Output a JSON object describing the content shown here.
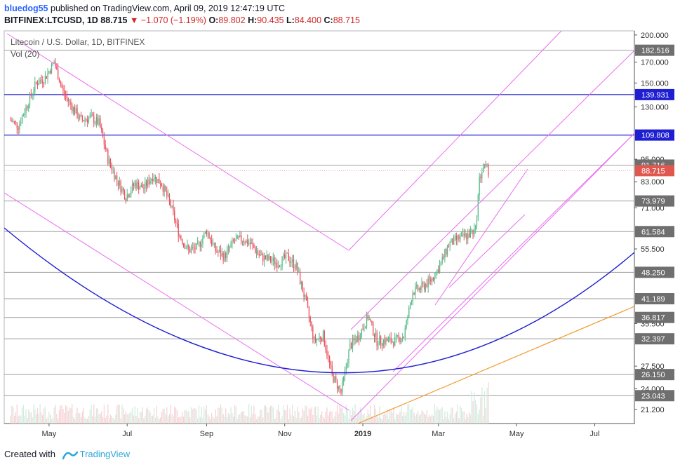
{
  "header": {
    "author": "bluedog55",
    "published_text": "published on TradingView.com, April 09, 2019 12:47:19 UTC",
    "symbol": "BITFINEX:LTCUSD, 1D",
    "last": "88.715",
    "change": "▼ −1.070 (−1.19%)",
    "o_label": "O:",
    "o": "89.802",
    "h_label": "H:",
    "h": "90.435",
    "l_label": "L:",
    "l": "84.400",
    "c_label": "C:",
    "c": "88.715"
  },
  "footer": {
    "created_with": "Created with",
    "brand": "TradingView"
  },
  "colors": {
    "up": "#53b987",
    "down": "#eb4d5c",
    "vol_up": "#d5ece0",
    "vol_down": "#f6d3d6",
    "blue_line": "#1e1ed2",
    "magenta_line": "#ea6ef0",
    "orange_line": "#f29a2e",
    "gray_line": "#9e9e9e",
    "axis_label_bg": "#6f6f6f",
    "price_label_bg": "#e0574f",
    "blue_label_bg": "#1e1ed2"
  },
  "chart_data": {
    "type": "candlestick",
    "title": "Litecoin / U.S. Dollar, 1D, BITFINEX",
    "indicator": "Vol (20)",
    "scale": "log",
    "ylim": [
      19.5,
      205
    ],
    "x_ticks": [
      "May",
      "Jul",
      "Sep",
      "Nov",
      "2019",
      "Mar",
      "May",
      "Jul"
    ],
    "y_ticks": [
      "200.000",
      "170.000",
      "150.000",
      "130.000",
      "95.000",
      "83.000",
      "71.000",
      "55.500",
      "35.500",
      "27.500",
      "24.000",
      "21.200"
    ],
    "horizontal_levels": [
      {
        "value": "182.516",
        "style": "gray"
      },
      {
        "value": "139.931",
        "style": "blue"
      },
      {
        "value": "109.808",
        "style": "blue"
      },
      {
        "value": "91.716",
        "style": "gray"
      },
      {
        "value": "73.979",
        "style": "gray"
      },
      {
        "value": "61.584",
        "style": "gray"
      },
      {
        "value": "48.250",
        "style": "gray"
      },
      {
        "value": "41.189",
        "style": "gray"
      },
      {
        "value": "36.817",
        "style": "gray"
      },
      {
        "value": "32.397",
        "style": "gray"
      },
      {
        "value": "26.150",
        "style": "gray"
      },
      {
        "value": "23.043",
        "style": "gray"
      }
    ],
    "current_price": "88.715",
    "close_series_approx": [
      {
        "date": "2018-04-01",
        "close": 120
      },
      {
        "date": "2018-04-07",
        "close": 116
      },
      {
        "date": "2018-04-14",
        "close": 132
      },
      {
        "date": "2018-04-21",
        "close": 150
      },
      {
        "date": "2018-04-28",
        "close": 155
      },
      {
        "date": "2018-05-05",
        "close": 170
      },
      {
        "date": "2018-05-12",
        "close": 142
      },
      {
        "date": "2018-05-19",
        "close": 130
      },
      {
        "date": "2018-05-26",
        "close": 120
      },
      {
        "date": "2018-06-02",
        "close": 122
      },
      {
        "date": "2018-06-09",
        "close": 118
      },
      {
        "date": "2018-06-16",
        "close": 95
      },
      {
        "date": "2018-06-23",
        "close": 84
      },
      {
        "date": "2018-06-30",
        "close": 76
      },
      {
        "date": "2018-07-07",
        "close": 82
      },
      {
        "date": "2018-07-14",
        "close": 80
      },
      {
        "date": "2018-07-21",
        "close": 86
      },
      {
        "date": "2018-07-28",
        "close": 82
      },
      {
        "date": "2018-08-04",
        "close": 72
      },
      {
        "date": "2018-08-11",
        "close": 60
      },
      {
        "date": "2018-08-18",
        "close": 55
      },
      {
        "date": "2018-08-25",
        "close": 56
      },
      {
        "date": "2018-09-01",
        "close": 62
      },
      {
        "date": "2018-09-08",
        "close": 55
      },
      {
        "date": "2018-09-15",
        "close": 53
      },
      {
        "date": "2018-09-22",
        "close": 58
      },
      {
        "date": "2018-09-29",
        "close": 59
      },
      {
        "date": "2018-10-06",
        "close": 57
      },
      {
        "date": "2018-10-13",
        "close": 53
      },
      {
        "date": "2018-10-20",
        "close": 52
      },
      {
        "date": "2018-10-27",
        "close": 51
      },
      {
        "date": "2018-11-03",
        "close": 53
      },
      {
        "date": "2018-11-10",
        "close": 50
      },
      {
        "date": "2018-11-17",
        "close": 41
      },
      {
        "date": "2018-11-24",
        "close": 32
      },
      {
        "date": "2018-12-01",
        "close": 33
      },
      {
        "date": "2018-12-08",
        "close": 26
      },
      {
        "date": "2018-12-15",
        "close": 23.5
      },
      {
        "date": "2018-12-22",
        "close": 31
      },
      {
        "date": "2018-12-29",
        "close": 33
      },
      {
        "date": "2019-01-05",
        "close": 37
      },
      {
        "date": "2019-01-12",
        "close": 32
      },
      {
        "date": "2019-01-19",
        "close": 32
      },
      {
        "date": "2019-01-26",
        "close": 32
      },
      {
        "date": "2019-02-02",
        "close": 33
      },
      {
        "date": "2019-02-09",
        "close": 43
      },
      {
        "date": "2019-02-16",
        "close": 44
      },
      {
        "date": "2019-02-23",
        "close": 46
      },
      {
        "date": "2019-03-02",
        "close": 50
      },
      {
        "date": "2019-03-09",
        "close": 57
      },
      {
        "date": "2019-03-16",
        "close": 59
      },
      {
        "date": "2019-03-23",
        "close": 60
      },
      {
        "date": "2019-03-30",
        "close": 62
      },
      {
        "date": "2019-04-02",
        "close": 84
      },
      {
        "date": "2019-04-05",
        "close": 91
      },
      {
        "date": "2019-04-09",
        "close": 88.715
      }
    ]
  }
}
